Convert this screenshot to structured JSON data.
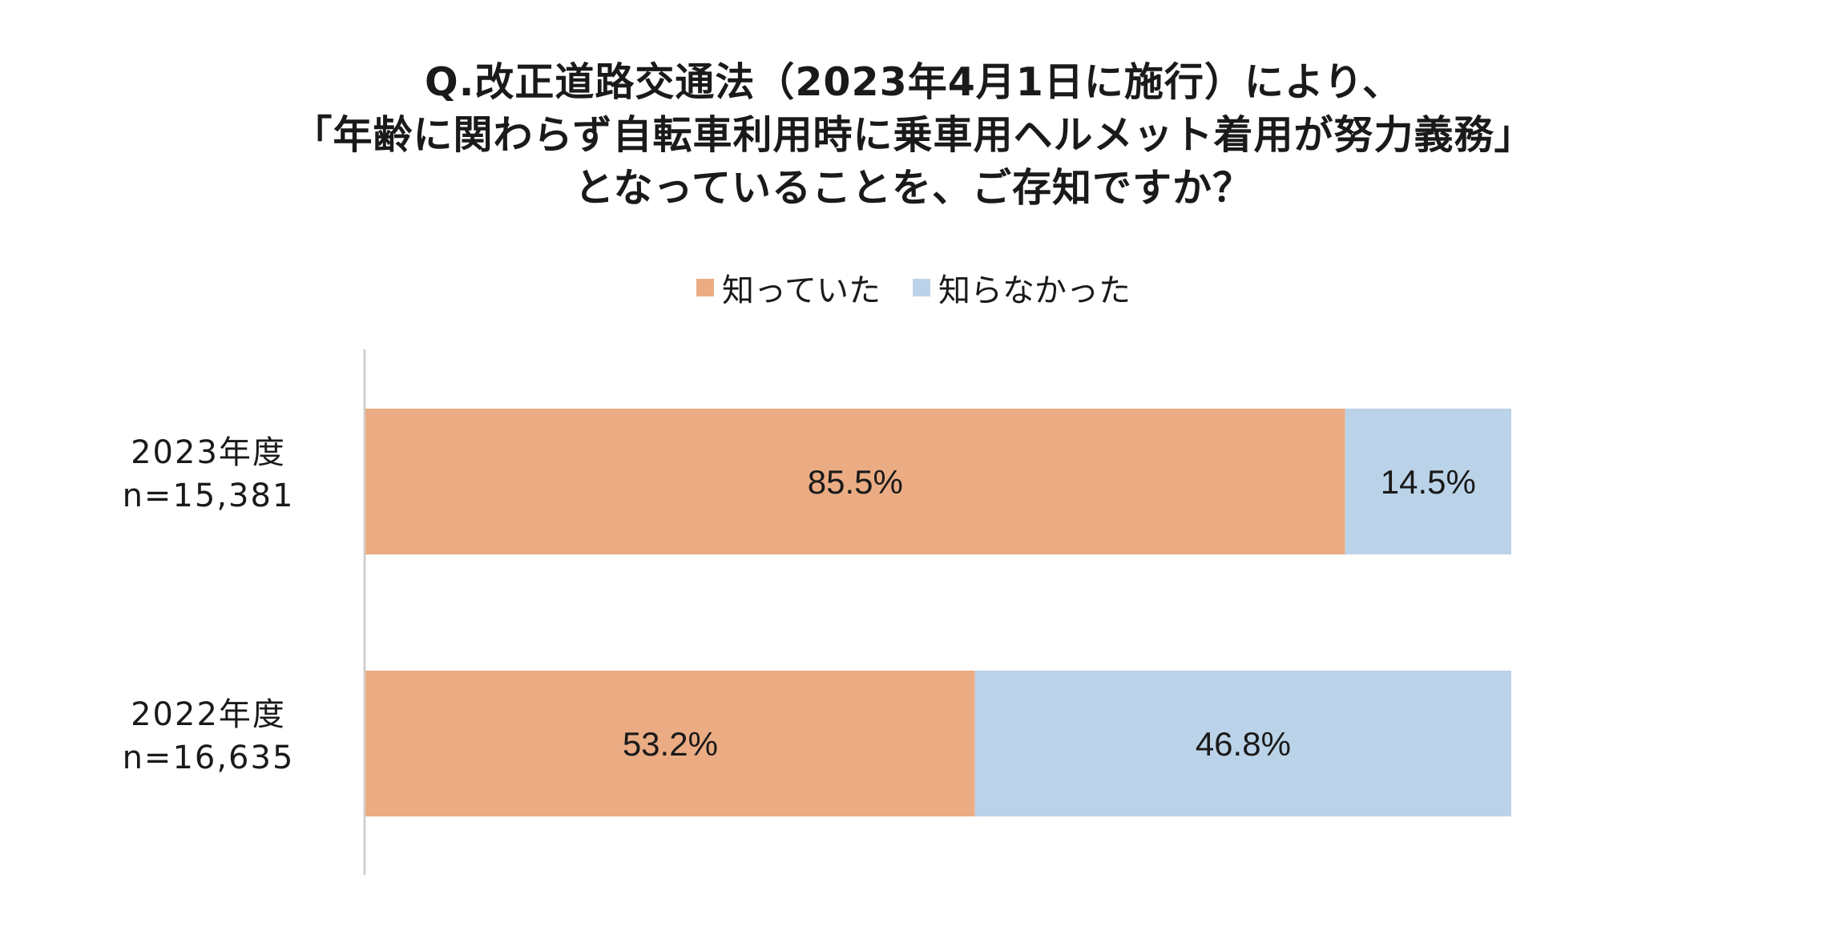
{
  "title_lines": [
    "Q.改正道路交通法（2023年4月1日に施行）により、",
    "「年齢に関わらず自転車利用時に乗車用ヘルメット着用が努力義務」",
    "となっていることを、ご存知ですか？"
  ],
  "chart_data": {
    "type": "bar",
    "orientation": "horizontal",
    "stacked": true,
    "percent_stacked": true,
    "categories": [
      {
        "year": "2023年度",
        "n": "n=15,381"
      },
      {
        "year": "2022年度",
        "n": "n=16,635"
      }
    ],
    "series": [
      {
        "name": "知っていた",
        "color": "#EBAC84",
        "values": [
          85.5,
          53.2
        ],
        "labels": [
          "85.5%",
          "53.2%"
        ]
      },
      {
        "name": "知らなかった",
        "color": "#BBD3E8",
        "values": [
          14.5,
          46.8
        ],
        "labels": [
          "14.5%",
          "46.8%"
        ]
      }
    ],
    "xlim": [
      0,
      100
    ],
    "legend_position": "top-center",
    "grid": false
  }
}
